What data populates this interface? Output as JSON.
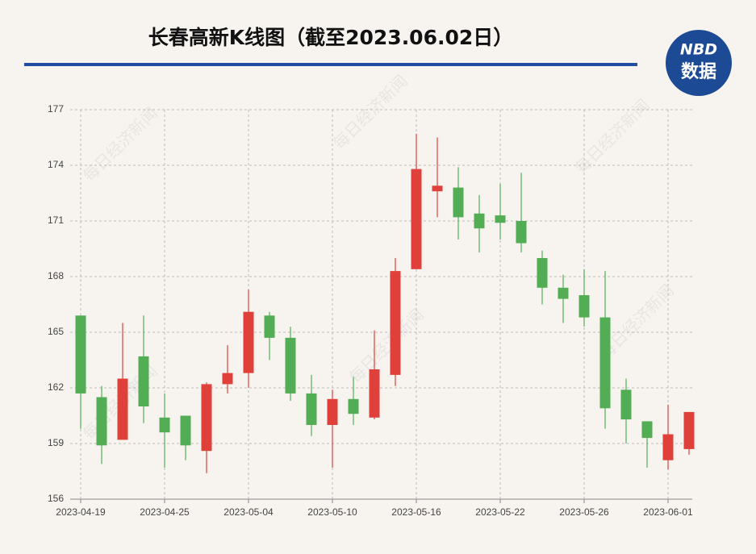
{
  "chart_data": {
    "type": "candlestick",
    "title": "长春高新K线图（截至2023.06.02日）",
    "logo": {
      "top": "NBD",
      "bottom": "数据"
    },
    "watermark": "每日经济新闻",
    "categories": [
      "2023-04-19",
      null,
      null,
      null,
      "2023-04-25",
      null,
      null,
      null,
      "2023-05-04",
      null,
      null,
      null,
      "2023-05-10",
      null,
      null,
      null,
      "2023-05-16",
      null,
      null,
      null,
      "2023-05-22",
      null,
      null,
      null,
      "2023-05-26",
      null,
      null,
      null,
      "2023-06-01",
      null
    ],
    "open": [
      165.9,
      161.5,
      159.2,
      163.7,
      160.4,
      160.5,
      158.6,
      162.2,
      162.8,
      165.9,
      164.7,
      161.7,
      160.0,
      161.4,
      160.4,
      162.7,
      168.4,
      172.6,
      172.8,
      171.4,
      171.3,
      171.0,
      169.0,
      167.4,
      167.0,
      165.8,
      161.9,
      160.2,
      158.1,
      158.7
    ],
    "high": [
      165.9,
      162.1,
      165.5,
      165.9,
      161.7,
      160.5,
      162.3,
      164.3,
      167.3,
      166.1,
      165.3,
      162.7,
      161.9,
      162.6,
      165.1,
      169.0,
      175.7,
      175.5,
      173.9,
      172.4,
      173.0,
      173.6,
      169.4,
      168.1,
      168.4,
      168.3,
      162.5,
      160.2,
      161.1,
      160.7
    ],
    "low": [
      159.8,
      157.9,
      159.2,
      160.1,
      157.7,
      158.1,
      157.4,
      161.7,
      162.0,
      163.5,
      161.3,
      159.4,
      157.7,
      160.0,
      160.3,
      162.1,
      168.4,
      171.2,
      170.0,
      169.3,
      170.0,
      169.3,
      166.5,
      165.5,
      165.3,
      159.8,
      159.0,
      157.7,
      157.6,
      158.4
    ],
    "close": [
      161.7,
      158.9,
      162.5,
      161.0,
      159.6,
      158.9,
      162.2,
      162.8,
      166.1,
      164.7,
      161.7,
      160.0,
      161.4,
      160.6,
      163.0,
      168.3,
      173.8,
      172.9,
      171.2,
      170.6,
      170.9,
      169.8,
      167.4,
      166.8,
      165.8,
      160.9,
      160.3,
      159.3,
      159.5,
      160.7
    ],
    "up_color": "#e0403a",
    "down_color": "#52ad55",
    "ylim": [
      156,
      177
    ],
    "yticks": [
      156,
      159,
      162,
      165,
      168,
      171,
      174,
      177
    ],
    "grid": true
  }
}
